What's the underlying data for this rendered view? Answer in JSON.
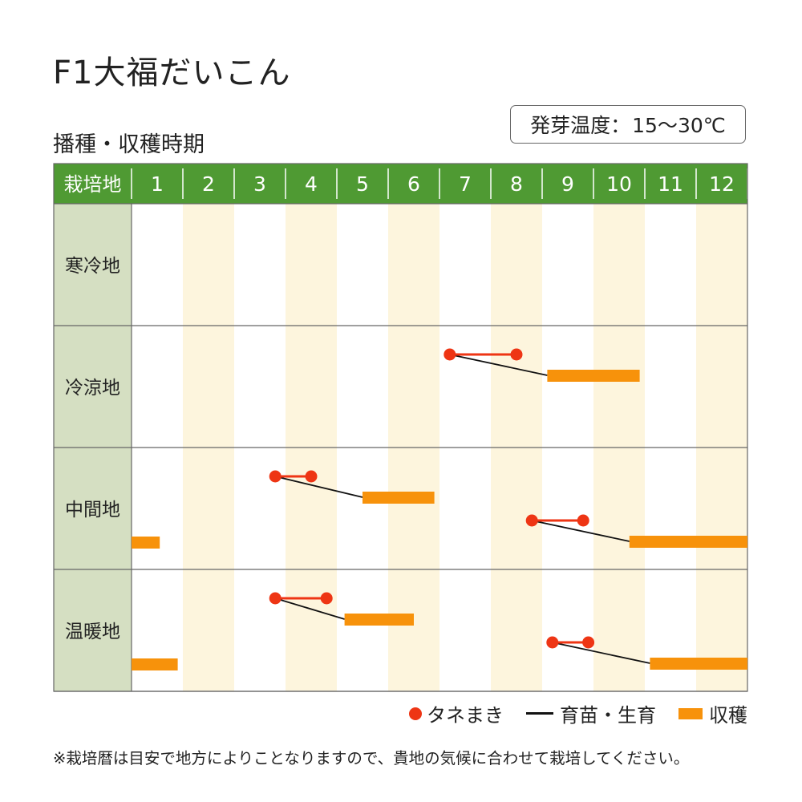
{
  "title": "F1大福だいこん",
  "temperature_box": {
    "label": "発芽温度：",
    "value": "15～30℃"
  },
  "legend": {
    "sowing": "タネまき",
    "growing": "育苗・生育",
    "harvest": "収穫"
  },
  "footnote": "※栽培暦は目安で地方によりことなりますので、貴地の気候に合わせて栽培してください。",
  "colors": {
    "header_green": "#4f9a33",
    "region_bg": "#d5dfc2",
    "alt_month_bg": "#fdf5dd",
    "sowing_red": "#ee3514",
    "harvest_orange": "#f7920b",
    "growth_line": "#111111",
    "grid_line": "#666666"
  },
  "chart_data": {
    "type": "table",
    "title": "播種・収穫時期",
    "header_label": "栽培地",
    "months": [
      "1",
      "2",
      "3",
      "4",
      "5",
      "6",
      "7",
      "8",
      "9",
      "10",
      "11",
      "12"
    ],
    "regions": [
      {
        "name": "寒冷地",
        "schedules": []
      },
      {
        "name": "冷涼地",
        "schedules": [
          {
            "sow": [
              7.2,
              8.5
            ],
            "harvest": [
              9.1,
              10.9
            ]
          }
        ]
      },
      {
        "name": "中間地",
        "schedules": [
          {
            "sow": [
              3.8,
              4.5
            ],
            "harvest": [
              5.5,
              6.9
            ]
          },
          {
            "sow": [
              8.8,
              9.8
            ],
            "harvest": [
              10.7,
              13.0
            ]
          },
          {
            "harvest": [
              1.0,
              1.55
            ],
            "lane": 2
          }
        ]
      },
      {
        "name": "温暖地",
        "schedules": [
          {
            "sow": [
              3.8,
              4.8
            ],
            "harvest": [
              5.15,
              6.5
            ]
          },
          {
            "sow": [
              9.2,
              9.9
            ],
            "harvest": [
              11.1,
              13.0
            ]
          },
          {
            "harvest": [
              1.0,
              1.9
            ],
            "lane": 2
          }
        ]
      }
    ]
  }
}
